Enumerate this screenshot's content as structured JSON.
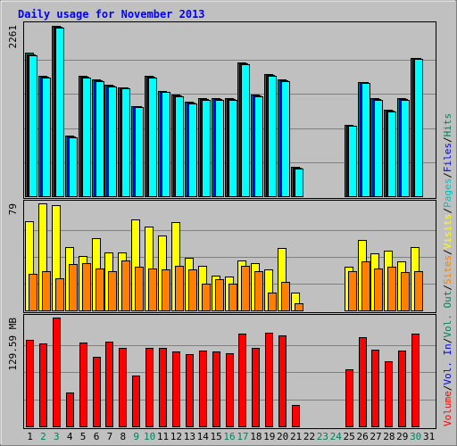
{
  "chart_data": {
    "type": "bar",
    "title": "Daily usage for November 2013",
    "categories": [
      "1",
      "2",
      "3",
      "4",
      "5",
      "6",
      "7",
      "8",
      "9",
      "10",
      "11",
      "12",
      "13",
      "14",
      "15",
      "16",
      "17",
      "18",
      "19",
      "20",
      "21",
      "22",
      "23",
      "24",
      "25",
      "26",
      "27",
      "28",
      "29",
      "30",
      "31"
    ],
    "weekend_days": [
      "2",
      "3",
      "9",
      "10",
      "16",
      "17",
      "23",
      "24",
      "30"
    ],
    "panels": [
      {
        "id": "hits",
        "max_label": "2261",
        "ymax": 2261,
        "series": [
          {
            "name": "Hits",
            "color": "#00805c",
            "values": [
              1900,
              1600,
              2261,
              800,
              1600,
              1550,
              1480,
              1450,
              1200,
              1600,
              1400,
              1350,
              1250,
              1300,
              1300,
              1300,
              1770,
              1350,
              1620,
              1550,
              390,
              0,
              0,
              0,
              950,
              1520,
              1300,
              1150,
              1300,
              1840,
              0
            ]
          },
          {
            "name": "Files",
            "color": "#0000ff",
            "values": [
              1880,
              1590,
              2250,
              790,
              1590,
              1540,
              1470,
              1440,
              1190,
              1590,
              1390,
              1340,
              1240,
              1290,
              1290,
              1290,
              1760,
              1340,
              1610,
              1540,
              380,
              0,
              0,
              0,
              940,
              1510,
              1290,
              1140,
              1290,
              1830,
              0
            ]
          },
          {
            "name": "Pages",
            "color": "#00ffff",
            "values": [
              1870,
              1580,
              2240,
              780,
              1580,
              1530,
              1460,
              1430,
              1180,
              1580,
              1380,
              1330,
              1230,
              1280,
              1280,
              1280,
              1750,
              1330,
              1600,
              1530,
              370,
              0,
              0,
              0,
              930,
              1500,
              1280,
              1130,
              1280,
              1820,
              0
            ]
          }
        ]
      },
      {
        "id": "visits",
        "max_label": "79",
        "ymax": 79,
        "series": [
          {
            "name": "Visits",
            "color": "#ffff00",
            "values": [
              66,
              79,
              78,
              47,
              40,
              53,
              43,
              43,
              67,
              62,
              55,
              65,
              39,
              33,
              26,
              25,
              37,
              35,
              30,
              46,
              13,
              0,
              0,
              0,
              32,
              52,
              42,
              44,
              36,
              47,
              0
            ]
          },
          {
            "name": "Sites",
            "color": "#ff8000",
            "values": [
              27,
              29,
              24,
              34,
              35,
              31,
              29,
              37,
              32,
              31,
              30,
              33,
              30,
              20,
              23,
              20,
              33,
              29,
              13,
              21,
              5,
              0,
              0,
              0,
              29,
              36,
              31,
              32,
              28,
              29,
              0
            ]
          }
        ]
      },
      {
        "id": "volume",
        "max_label": "129.59 MB",
        "ymax": 129.59,
        "series": [
          {
            "name": "Volume",
            "color": "#ff0000",
            "values": [
              103,
              99,
              129.59,
              40,
              100,
              83,
              101,
              93,
              61,
              94,
              94,
              89,
              86,
              90,
              89,
              87,
              111,
              93,
              112,
              108,
              25,
              0,
              0,
              0,
              68,
              106,
              91,
              78,
              90,
              111,
              0
            ]
          }
        ]
      }
    ],
    "legend": [
      {
        "label": "Volume",
        "color": "#ff0000"
      },
      {
        "label": "/",
        "color": "#000000"
      },
      {
        "label": "Vol. In",
        "color": "#0000ff"
      },
      {
        "label": "/",
        "color": "#000000"
      },
      {
        "label": "Vol. Out",
        "color": "#00805c"
      },
      {
        "label": "/",
        "color": "#000000"
      },
      {
        "label": "Sites",
        "color": "#ff8000"
      },
      {
        "label": "/",
        "color": "#000000"
      },
      {
        "label": "Visits",
        "color": "#ffff00"
      },
      {
        "label": "/",
        "color": "#000000"
      },
      {
        "label": "Pages",
        "color": "#00c0c0"
      },
      {
        "label": "/",
        "color": "#000000"
      },
      {
        "label": "Files",
        "color": "#0000ff"
      },
      {
        "label": "/",
        "color": "#000000"
      },
      {
        "label": "Hits",
        "color": "#00805c"
      }
    ],
    "colors": {
      "background": "#c0c0c0",
      "title": "#0000ff",
      "weekday_label": "#000000",
      "weekend_label": "#00805c",
      "grid": "#808080"
    }
  }
}
